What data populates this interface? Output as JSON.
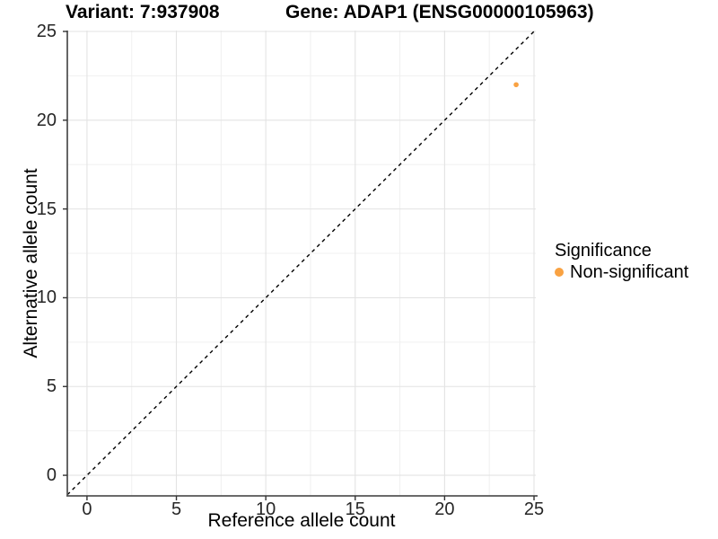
{
  "chart_data": {
    "type": "scatter",
    "titles": {
      "left": "Variant: 7:937908",
      "right": "Gene: ADAP1 (ENSG00000105963)"
    },
    "xlabel": "Reference allele count",
    "ylabel": "Alternative allele count",
    "xlim": [
      -1.1,
      25.1
    ],
    "ylim": [
      -1.16,
      25.05
    ],
    "x_ticks": [
      0,
      5,
      10,
      15,
      20,
      25
    ],
    "y_ticks": [
      0,
      5,
      10,
      15,
      20,
      25
    ],
    "x_minor_ticks": [
      2.5,
      7.5,
      12.5,
      17.5,
      22.5
    ],
    "y_minor_ticks": [
      2.5,
      7.5,
      12.5,
      17.5,
      22.5
    ],
    "grid": "major+minor",
    "reference_line": {
      "type": "identity",
      "slope": 1,
      "intercept": 0,
      "style": "dashed",
      "color": "#000000"
    },
    "series": [
      {
        "name": "Non-significant",
        "color": "#F9A242",
        "points": [
          {
            "x": 24,
            "y": 22
          }
        ]
      }
    ],
    "legend": {
      "title": "Significance",
      "position": "right",
      "items": [
        {
          "label": "Non-significant",
          "color": "#F9A242"
        }
      ]
    },
    "colors": {
      "background": "#FFFFFF",
      "grid_major": "#E3E3E3",
      "grid_minor": "#F0F0F0",
      "axis_line": "#555555",
      "tick_mark": "#333333",
      "tick_label": "#262626",
      "point": "#F9A242"
    }
  }
}
